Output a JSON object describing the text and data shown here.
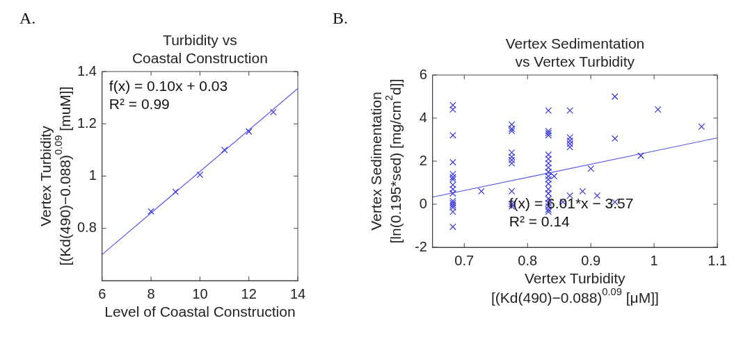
{
  "chart_data": [
    {
      "type": "scatter",
      "title": "Turbidity vs\nCoastal Construction",
      "xlabel": "Level of Coastal Construction",
      "ylabel": "Vertex Turbidity\n[(Kd(490)−0.088)$^{0.09}$ [muM]]",
      "annotations": [
        "A.",
        "f(x) = 0.10x + 0.03",
        "R² = 0.99"
      ],
      "marker": "cross",
      "grid": false,
      "legend": false,
      "xlim": [
        6,
        14
      ],
      "xticks": [
        6,
        8,
        10,
        12,
        14
      ],
      "ylim": [
        0.6,
        1.4
      ],
      "yticks": [
        0.8,
        1,
        1.2,
        1.4
      ],
      "series": [
        {
          "type": "scatter",
          "color": "#3333dd",
          "x": [
            8,
            9,
            10,
            11,
            12,
            13
          ],
          "values": [
            0.865,
            0.94,
            1.005,
            1.1,
            1.17,
            1.245
          ]
        },
        {
          "type": "line",
          "color": "#5555ee",
          "marker": "none",
          "x": [
            6,
            14
          ],
          "values": [
            0.7,
            1.335
          ]
        }
      ]
    },
    {
      "type": "scatter",
      "title": "Vertex Sedimentation\nvs Vertex Turbidity",
      "xlabel": "Vertex Turbidity\n[(Kd(490)−0.088)$^{0.09}$ [μM]]",
      "ylabel": "Vertex Sedimentation\n[ln(0.195*sed) [mg/cm$^{2}$d]]",
      "annotations": [
        "B.",
        "f(x) = 6.01*x − 3.57",
        "R² = 0.14"
      ],
      "marker": "cross",
      "grid": false,
      "legend": false,
      "xlim": [
        0.65,
        1.1
      ],
      "xticks": [
        0.7,
        0.8,
        0.9,
        1,
        1.1
      ],
      "ylim": [
        -2,
        6
      ],
      "yticks": [
        -2,
        0,
        2,
        4,
        6
      ],
      "series": [
        {
          "type": "scatter",
          "color": "#3333dd",
          "x": [
            0.682,
            0.682,
            0.682,
            0.682,
            0.682,
            0.682,
            0.682,
            0.682,
            0.682,
            0.682,
            0.682,
            0.682,
            0.682,
            0.682,
            0.682,
            0.682,
            0.727,
            0.775,
            0.775,
            0.775,
            0.775,
            0.775,
            0.775,
            0.775,
            0.775,
            0.775,
            0.775,
            0.833,
            0.833,
            0.833,
            0.833,
            0.833,
            0.833,
            0.833,
            0.833,
            0.833,
            0.833,
            0.833,
            0.833,
            0.833,
            0.833,
            0.833,
            0.833,
            0.833,
            0.833,
            0.833,
            0.842,
            0.867,
            0.867,
            0.867,
            0.867,
            0.867,
            0.867,
            0.856,
            0.887,
            0.9,
            0.91,
            0.938,
            0.938,
            0.938,
            0.979,
            1.006,
            1.075
          ],
          "values": [
            4.6,
            4.4,
            3.2,
            1.95,
            1.4,
            1.25,
            1.15,
            0.9,
            0.7,
            0.5,
            0.15,
            0.05,
            -0.05,
            -0.15,
            -0.35,
            -1.05,
            0.6,
            3.7,
            3.5,
            3.4,
            2.4,
            2.2,
            2.05,
            1.9,
            0.6,
            0,
            -0.1,
            4.35,
            3.4,
            3.3,
            3.2,
            2.3,
            2.1,
            1.9,
            1.7,
            1.5,
            1.3,
            1.15,
            0.95,
            0.7,
            0.5,
            0.25,
            0.05,
            -0.1,
            -0.25,
            -0.35,
            1.3,
            4.35,
            3.1,
            2.95,
            2.8,
            2.65,
            0.4,
            0.1,
            0.6,
            1.65,
            0.4,
            5.0,
            3.05,
            0.1,
            2.25,
            4.4,
            3.6
          ]
        },
        {
          "type": "line",
          "color": "#5555ee",
          "marker": "none",
          "x": [
            0.65,
            1.1
          ],
          "values": [
            0.33,
            3.08
          ]
        }
      ]
    }
  ]
}
